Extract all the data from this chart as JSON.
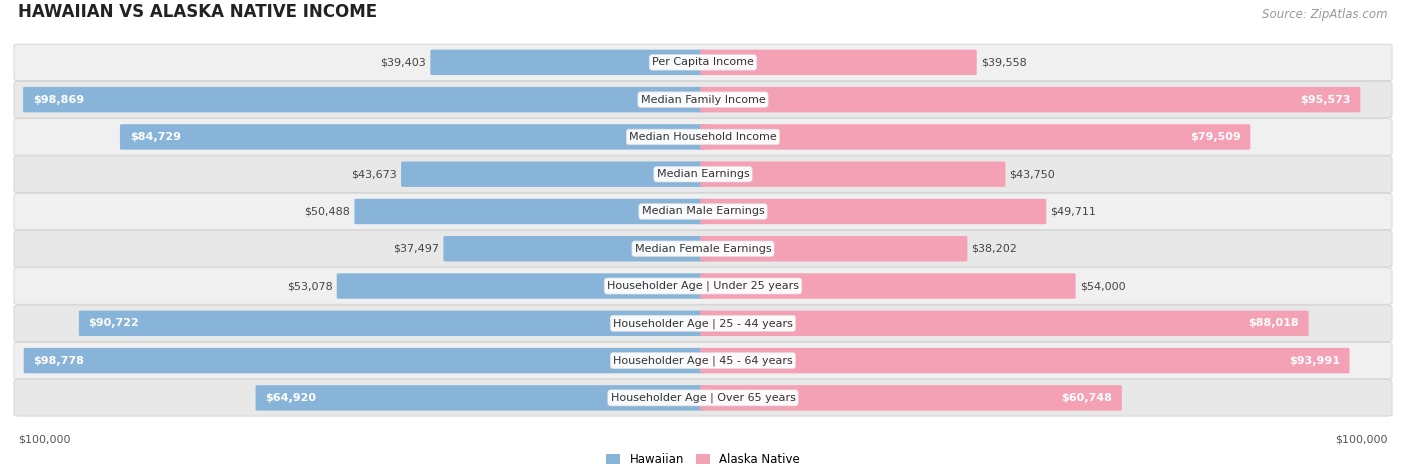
{
  "title": "HAWAIIAN VS ALASKA NATIVE INCOME",
  "source": "Source: ZipAtlas.com",
  "categories": [
    "Per Capita Income",
    "Median Family Income",
    "Median Household Income",
    "Median Earnings",
    "Median Male Earnings",
    "Median Female Earnings",
    "Householder Age | Under 25 years",
    "Householder Age | 25 - 44 years",
    "Householder Age | 45 - 64 years",
    "Householder Age | Over 65 years"
  ],
  "hawaiian_values": [
    39403,
    98869,
    84729,
    43673,
    50488,
    37497,
    53078,
    90722,
    98778,
    64920
  ],
  "alaska_values": [
    39558,
    95573,
    79509,
    43750,
    49711,
    38202,
    54000,
    88018,
    93991,
    60748
  ],
  "max_value": 100000,
  "hawaiian_color": "#89b4d9",
  "alaska_color": "#f4a0b5",
  "label_hawaiian": "Hawaiian",
  "label_alaska": "Alaska Native",
  "title_fontsize": 12,
  "source_fontsize": 8.5,
  "bar_label_fontsize": 8,
  "category_fontsize": 8,
  "axis_label_fontsize": 8
}
